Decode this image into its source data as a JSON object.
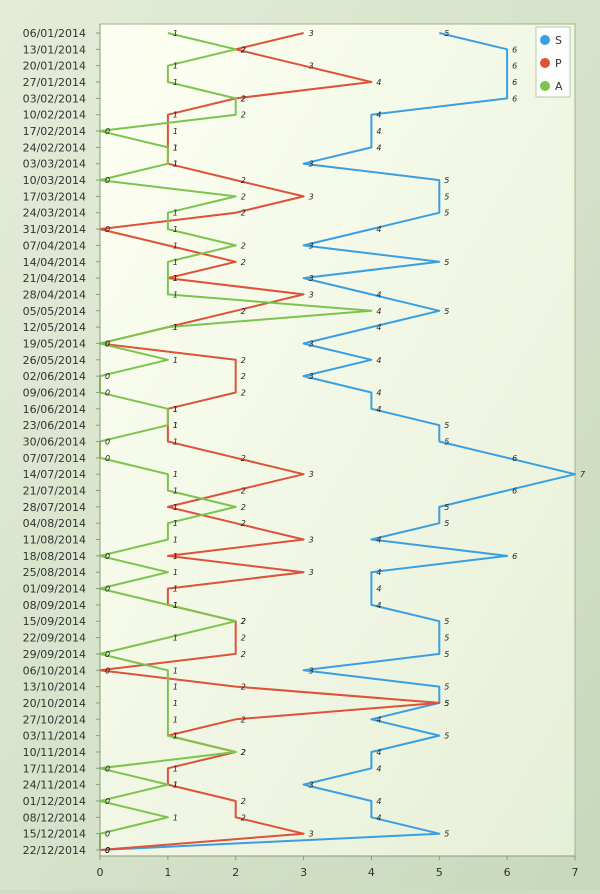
{
  "chart_data": {
    "type": "line",
    "orientation": "horizontal-value-axis",
    "categories": [
      "06/01/2014",
      "13/01/2014",
      "20/01/2014",
      "27/01/2014",
      "03/02/2014",
      "10/02/2014",
      "17/02/2014",
      "24/02/2014",
      "03/03/2014",
      "10/03/2014",
      "17/03/2014",
      "24/03/2014",
      "31/03/2014",
      "07/04/2014",
      "14/04/2014",
      "21/04/2014",
      "28/04/2014",
      "05/05/2014",
      "12/05/2014",
      "19/05/2014",
      "26/05/2014",
      "02/06/2014",
      "09/06/2014",
      "16/06/2014",
      "23/06/2014",
      "30/06/2014",
      "07/07/2014",
      "14/07/2014",
      "21/07/2014",
      "28/07/2014",
      "04/08/2014",
      "11/08/2014",
      "18/08/2014",
      "25/08/2014",
      "01/09/2014",
      "08/09/2014",
      "15/09/2014",
      "22/09/2014",
      "29/09/2014",
      "06/10/2014",
      "13/10/2014",
      "20/10/2014",
      "27/10/2014",
      "03/11/2014",
      "10/11/2014",
      "17/11/2014",
      "24/11/2014",
      "01/12/2014",
      "08/12/2014",
      "15/12/2014",
      "22/12/2014"
    ],
    "series": [
      {
        "name": "S",
        "color": "#3a9fe0",
        "values": [
          5,
          6,
          6,
          6,
          6,
          4,
          4,
          4,
          3,
          5,
          5,
          5,
          4,
          3,
          5,
          3,
          4,
          5,
          4,
          3,
          4,
          3,
          4,
          4,
          5,
          5,
          6,
          7,
          6,
          5,
          5,
          4,
          6,
          4,
          4,
          4,
          5,
          5,
          5,
          3,
          5,
          5,
          4,
          5,
          4,
          4,
          3,
          4,
          4,
          5,
          0
        ]
      },
      {
        "name": "P",
        "color": "#dd5238",
        "values": [
          3,
          2,
          3,
          4,
          2,
          1,
          1,
          1,
          1,
          2,
          3,
          2,
          0,
          1,
          2,
          1,
          3,
          2,
          1,
          0,
          2,
          2,
          2,
          1,
          1,
          1,
          2,
          3,
          2,
          1,
          2,
          3,
          1,
          3,
          1,
          1,
          2,
          2,
          2,
          0,
          2,
          5,
          2,
          1,
          2,
          1,
          1,
          2,
          2,
          3,
          0
        ]
      },
      {
        "name": "A",
        "color": "#7cc44e",
        "values": [
          1,
          2,
          1,
          1,
          2,
          2,
          0,
          1,
          1,
          0,
          2,
          1,
          1,
          2,
          1,
          1,
          1,
          4,
          1,
          0,
          1,
          0,
          0,
          1,
          1,
          0,
          0,
          1,
          1,
          2,
          1,
          1,
          0,
          1,
          0,
          1,
          2,
          1,
          0,
          1,
          1,
          1,
          1,
          1,
          2,
          0,
          1,
          0,
          1,
          0,
          0
        ]
      }
    ],
    "xticks": [
      "0",
      "1",
      "2",
      "3",
      "4",
      "5",
      "6",
      "7"
    ],
    "xlim": [
      0,
      7
    ],
    "grid": false,
    "legend_position": "top-right",
    "data_labels": true,
    "background": "#fbfdf0"
  }
}
